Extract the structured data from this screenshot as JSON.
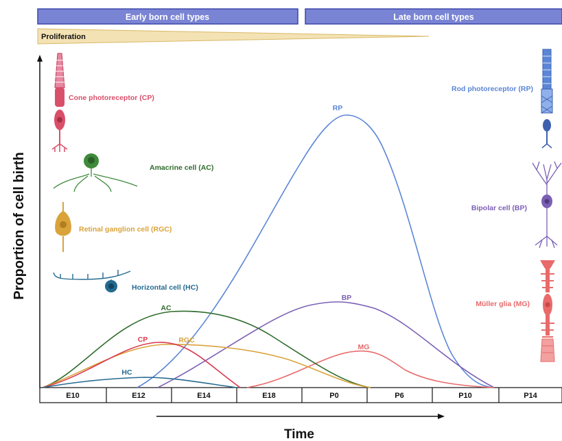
{
  "banners": {
    "early": "Early born cell types",
    "late": "Late born cell types",
    "proliferation": "Proliferation"
  },
  "axes": {
    "y_title": "Proportion of cell birth",
    "x_title": "Time",
    "ticks": [
      "E10",
      "E12",
      "E14",
      "E18",
      "P0",
      "P6",
      "P10",
      "P14"
    ]
  },
  "cells": {
    "cp": "Cone photoreceptor (CP)",
    "ac": "Amacrine cell (AC)",
    "rgc": "Retinal ganglion cell (RGC)",
    "hc": "Horizontal cell (HC)",
    "rp": "Rod photoreceptor (RP)",
    "bp": "Bipolar cell (BP)",
    "mg": "Müller glia (MG)"
  },
  "curves": {
    "ac": "AC",
    "cp": "CP",
    "rgc": "RGC",
    "hc": "HC",
    "rp": "RP",
    "bp": "BP",
    "mg": "MG"
  },
  "colors": {
    "banner": "#7a84d4",
    "cp": "#d94f6a",
    "ac": "#2f6b2c",
    "rgc": "#d9a33a",
    "hc": "#246a8f",
    "rp": "#5b86d6",
    "bp": "#7b5fb4",
    "mg": "#e86a6a"
  }
}
